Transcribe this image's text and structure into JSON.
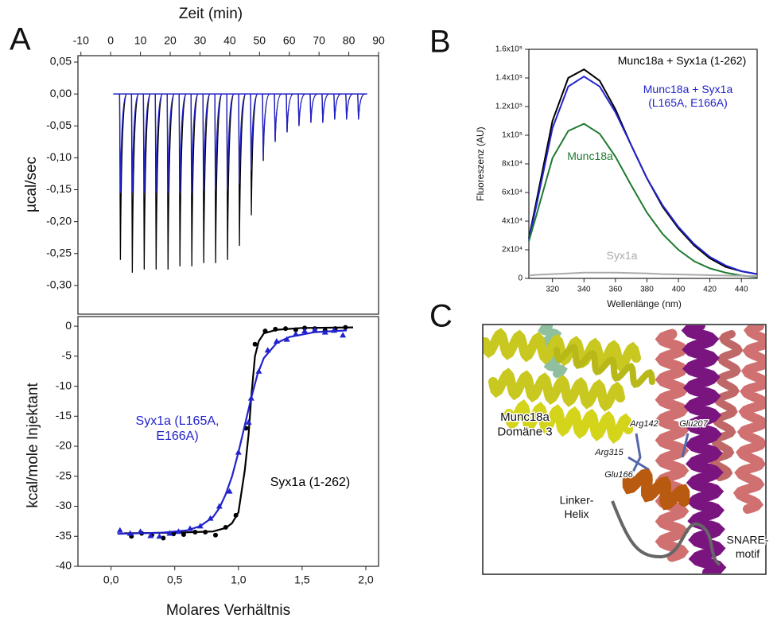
{
  "chart_data": [
    {
      "type": "spikes",
      "panel": "A",
      "xlabel": "Zeit (min)",
      "ylabel": "µcal/sec",
      "xlim": [
        -11,
        90
      ],
      "xticks": [
        -10,
        0,
        10,
        20,
        30,
        40,
        50,
        60,
        70,
        80,
        90
      ],
      "ylim": [
        -0.345,
        0.06
      ],
      "yticks": [
        {
          "value": 0.05,
          "label": "0,05"
        },
        {
          "value": 0,
          "label": "0,00"
        },
        {
          "value": -0.05,
          "label": "-0,05"
        },
        {
          "value": -0.1,
          "label": "-0,10"
        },
        {
          "value": -0.15,
          "label": "-0,15"
        },
        {
          "value": -0.2,
          "label": "-0,20"
        },
        {
          "value": -0.25,
          "label": "-0,25"
        },
        {
          "value": -0.3,
          "label": "-0,30"
        }
      ],
      "baseline": 0,
      "x": [
        3,
        7,
        11,
        15,
        19,
        23,
        27,
        31,
        35,
        39,
        43,
        47,
        51,
        55,
        59,
        63,
        67,
        71,
        75,
        79,
        83
      ],
      "series": [
        {
          "color": "#000000",
          "values": [
            -0.26,
            -0.28,
            -0.275,
            -0.275,
            -0.275,
            -0.27,
            -0.27,
            -0.265,
            -0.265,
            -0.26,
            -0.238,
            -0.19,
            -0.105,
            -0.075,
            -0.06,
            -0.05,
            -0.045,
            -0.045,
            -0.04,
            -0.04,
            -0.04
          ]
        },
        {
          "color": "#2222cc",
          "values": [
            -0.155,
            -0.155,
            -0.155,
            -0.155,
            -0.155,
            -0.155,
            -0.155,
            -0.15,
            -0.15,
            -0.15,
            -0.14,
            -0.12,
            -0.1,
            -0.075,
            -0.06,
            -0.05,
            -0.045,
            -0.045,
            -0.04,
            -0.04,
            -0.04
          ]
        }
      ]
    },
    {
      "type": "scatter",
      "xlabel": "Molares Verhältnis",
      "ylabel": "kcal/mole Injektant",
      "xlim": [
        -0.26,
        2.1
      ],
      "xticks": [
        {
          "value": 0,
          "label": "0,0"
        },
        {
          "value": 0.5,
          "label": "0,5"
        },
        {
          "value": 1,
          "label": "1,0"
        },
        {
          "value": 1.5,
          "label": "1,5"
        },
        {
          "value": 2,
          "label": "2,0"
        }
      ],
      "ylim": [
        -40,
        1.6
      ],
      "yticks": [
        0,
        -5,
        -10,
        -15,
        -20,
        -25,
        -30,
        -35,
        -40
      ],
      "series": [
        {
          "name": "Syx1a (1-262)",
          "color": "#000000",
          "marker": "circle",
          "x": [
            0.16,
            0.24,
            0.32,
            0.41,
            0.49,
            0.57,
            0.66,
            0.74,
            0.82,
            0.9,
            0.98,
            1.06,
            1.13,
            1.21,
            1.29,
            1.37,
            1.45,
            1.52,
            1.6,
            1.68,
            1.76,
            1.84
          ],
          "values": [
            -35,
            -34.5,
            -34.8,
            -35.3,
            -34.6,
            -34.7,
            -34.3,
            -34.3,
            -34.8,
            -33.5,
            -31.5,
            -17,
            -3,
            -0.8,
            -0.5,
            -0.4,
            -0.6,
            -0.3,
            -0.4,
            -0.7,
            -0.4,
            -0.2
          ],
          "fit_x": [
            0.1,
            0.5,
            0.8,
            0.9,
            0.95,
            1.0,
            1.05,
            1.08,
            1.1,
            1.13,
            1.16,
            1.2,
            1.3,
            1.5,
            1.9
          ],
          "fit_values": [
            -34.5,
            -34.4,
            -34.2,
            -33.6,
            -32.8,
            -31,
            -24,
            -18,
            -12,
            -5,
            -2.5,
            -1.2,
            -0.6,
            -0.3,
            -0.2
          ]
        },
        {
          "name": "Syx1a (L165A, E166A)",
          "color": "#2222cc",
          "marker": "triangle",
          "x": [
            0.07,
            0.15,
            0.23,
            0.31,
            0.38,
            0.46,
            0.53,
            0.62,
            0.7,
            0.78,
            0.85,
            0.93,
            1.0,
            1.08,
            1.1,
            1.16,
            1.23,
            1.3,
            1.38,
            1.45,
            1.52,
            1.6,
            1.68,
            1.75,
            1.82
          ],
          "values": [
            -34,
            -34.5,
            -34.2,
            -34.9,
            -35,
            -34.5,
            -34.2,
            -33.7,
            -33.3,
            -32,
            -30,
            -27.5,
            -21,
            -16,
            -12,
            -7.5,
            -4,
            -2.5,
            -2.2,
            -1.3,
            -0.8,
            -0.6,
            -1,
            -0.7,
            -1.5
          ],
          "fit_x": [
            0.05,
            0.4,
            0.6,
            0.7,
            0.8,
            0.85,
            0.9,
            0.95,
            1.0,
            1.05,
            1.1,
            1.15,
            1.2,
            1.3,
            1.4,
            1.6,
            1.85
          ],
          "fit_values": [
            -34.6,
            -34.4,
            -34,
            -33.3,
            -31.8,
            -30.3,
            -28,
            -25,
            -21,
            -16.5,
            -12,
            -8,
            -5.3,
            -2.8,
            -1.8,
            -1,
            -0.7
          ]
        }
      ]
    },
    {
      "type": "line",
      "panel": "B",
      "xlabel": "Wellenlänge (nm)",
      "ylabel": "Fluoreszenz (AU)",
      "xlim": [
        305,
        450
      ],
      "xticks": [
        320,
        340,
        360,
        380,
        400,
        420,
        440
      ],
      "ylim": [
        0,
        160000
      ],
      "yticks": [
        0,
        {
          "value": 20000,
          "label": "2x10⁴"
        },
        {
          "value": 40000,
          "label": "4x10⁴"
        },
        {
          "value": 60000,
          "label": "6x10⁴"
        },
        {
          "value": 80000,
          "label": "8x10⁴"
        },
        {
          "value": 100000,
          "label": "1x10⁵"
        },
        {
          "value": 120000,
          "label": "1.2x10⁵"
        },
        {
          "value": 140000,
          "label": "1.4x10⁵"
        },
        {
          "value": 160000,
          "label": "1.6x10⁵"
        }
      ],
      "x": [
        305,
        310,
        320,
        330,
        340,
        350,
        360,
        370,
        380,
        390,
        400,
        410,
        420,
        430,
        440,
        450
      ],
      "series": [
        {
          "name": "Munc18a + Syx1a (1-262)",
          "color": "#000000",
          "values": [
            28000,
            55000,
            110000,
            140000,
            146000,
            138000,
            118000,
            93000,
            70000,
            50000,
            35000,
            23000,
            14000,
            8000,
            5000,
            3000
          ]
        },
        {
          "name": "Munc18a + Syx1a (L165A, E166A)",
          "color": "#2222cc",
          "values": [
            27000,
            52000,
            105000,
            134000,
            141000,
            134000,
            116000,
            93000,
            70000,
            51000,
            36000,
            24000,
            15000,
            9000,
            5000,
            3000
          ]
        },
        {
          "name": "Munc18a",
          "color": "#1e7a2e",
          "values": [
            26000,
            45000,
            84000,
            103000,
            108000,
            101000,
            85000,
            65000,
            46000,
            31000,
            20000,
            12000,
            7000,
            4000,
            2000,
            1000
          ]
        },
        {
          "name": "Syx1a",
          "color": "#aaaaaa",
          "values": [
            2000,
            2500,
            3000,
            3500,
            4000,
            4000,
            4000,
            3800,
            3500,
            3000,
            2800,
            2500,
            2200,
            2000,
            1800,
            1500
          ]
        }
      ]
    }
  ],
  "structure": {
    "panel": "C",
    "labels": [
      [
        "Munc18a",
        "Domäne 3"
      ],
      [
        "Arg142"
      ],
      [
        "Glu207"
      ],
      [
        "Arg315"
      ],
      [
        "Glu166"
      ],
      [
        "Linker-",
        "Helix"
      ],
      [
        "SNARE-",
        "motif"
      ]
    ]
  }
}
